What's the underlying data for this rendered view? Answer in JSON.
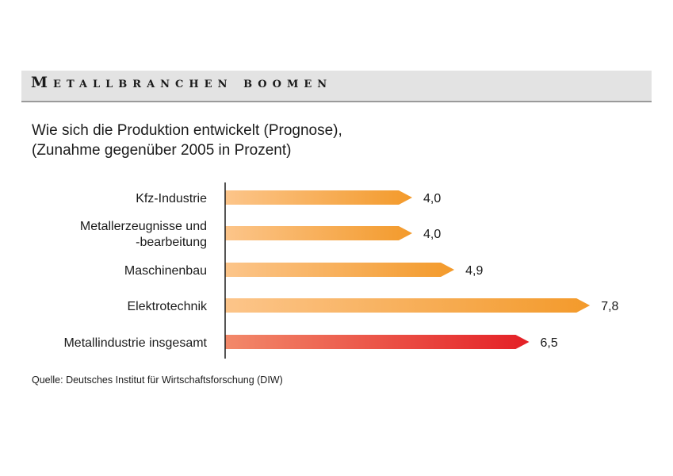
{
  "header": {
    "title": "Metallbranchen boomen",
    "subtitle_line1": "Wie sich die Produktion entwickelt (Prognose),",
    "subtitle_line2": "(Zunahme gegenüber 2005 in Prozent)"
  },
  "source": "Quelle: Deutsches Institut für Wirtschaftsforschung (DIW)",
  "colors": {
    "bar_light": "#fcc58a",
    "bar_dark": "#f39a2b",
    "total_light": "#f2896a",
    "total_dark": "#e42026"
  },
  "chart_data": {
    "type": "bar",
    "orientation": "horizontal",
    "title": "Metallbranchen boomen",
    "subtitle": "Wie sich die Produktion entwickelt (Prognose), (Zunahme gegenüber 2005 in Prozent)",
    "categories": [
      [
        "Kfz-Industrie"
      ],
      [
        "Metallerzeugnisse und",
        "-bearbeitung"
      ],
      [
        "Maschinenbau"
      ],
      [
        "Elektrotechnik"
      ],
      [
        "Metallindustrie insgesamt"
      ]
    ],
    "values": [
      4.0,
      4.0,
      4.9,
      7.8,
      6.5
    ],
    "value_labels": [
      "4,0",
      "4,0",
      "4,9",
      "7,8",
      "6,5"
    ],
    "highlight": [
      false,
      false,
      false,
      false,
      true
    ],
    "xlim": [
      0,
      8
    ],
    "grid": false,
    "legend": "none"
  }
}
